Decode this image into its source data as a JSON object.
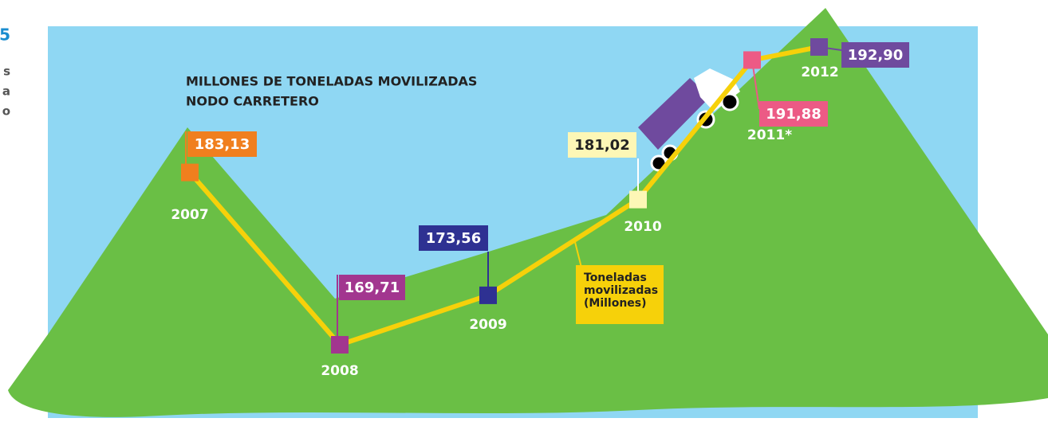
{
  "chart_data": {
    "type": "line",
    "title": "MILLONES DE TONELADAS MOVILIZADAS",
    "subtitle": "NODO CARRETERO",
    "side_fragments": [
      "5",
      "s",
      "a",
      "o"
    ],
    "categories": [
      "2007",
      "2008",
      "2009",
      "2010",
      "2011*",
      "2012"
    ],
    "series": [
      {
        "name": "Toneladas movilizadas (Millones)",
        "color": "#f6d10a",
        "values": [
          183.13,
          169.71,
          173.56,
          181.02,
          191.88,
          192.9
        ],
        "value_labels": [
          "183,13",
          "169,71",
          "173,56",
          "181,02",
          "191,88",
          "192,90"
        ],
        "point_colors": [
          "#f07f1e",
          "#a2368f",
          "#2e3192",
          "#fdf7b6",
          "#ec5a85",
          "#6f4a9e"
        ]
      }
    ]
  }
}
